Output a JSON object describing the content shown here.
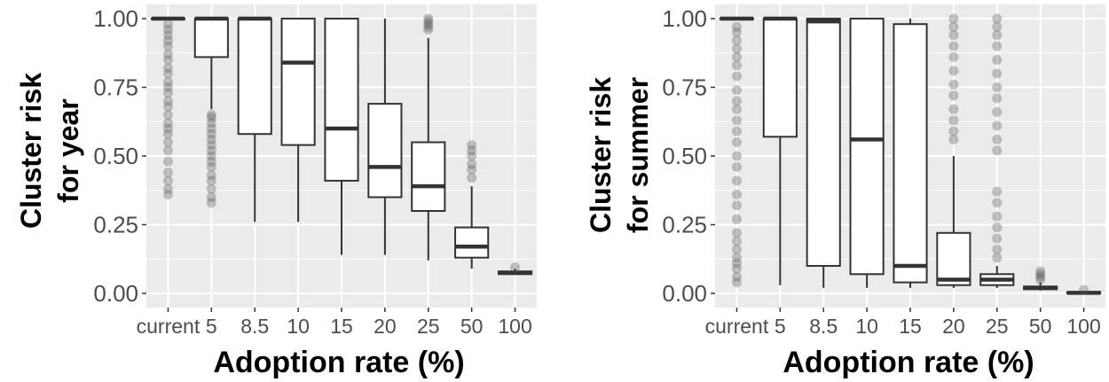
{
  "chart_data": [
    {
      "type": "boxplot",
      "title": "",
      "xlabel": "Adoption rate (%)",
      "ylabel_lines": [
        "Cluster risk",
        "for year"
      ],
      "ylim": [
        0,
        1
      ],
      "yticks": [
        0,
        0.25,
        0.5,
        0.75,
        1
      ],
      "ytick_labels": [
        "0.00",
        "0.25",
        "0.50",
        "0.75",
        "1.00"
      ],
      "categories": [
        "current",
        "5",
        "8.5",
        "10",
        "15",
        "20",
        "25",
        "50",
        "100"
      ],
      "grid": true,
      "boxes": [
        {
          "q1": 1.0,
          "median": 1.0,
          "q3": 1.0,
          "whisker_low": 1.0,
          "whisker_high": 1.0,
          "outliers": [
            0.36,
            0.38,
            0.41,
            0.44,
            0.48,
            0.52,
            0.55,
            0.58,
            0.6,
            0.62,
            0.65,
            0.68,
            0.7,
            0.73,
            0.75,
            0.77,
            0.8,
            0.82,
            0.85,
            0.87,
            0.9,
            0.92,
            0.94,
            0.96,
            0.98
          ]
        },
        {
          "q1": 0.86,
          "median": 1.0,
          "q3": 1.0,
          "whisker_low": 0.67,
          "whisker_high": 1.0,
          "outliers": [
            0.33,
            0.35,
            0.38,
            0.41,
            0.43,
            0.46,
            0.48,
            0.5,
            0.52,
            0.54,
            0.56,
            0.58,
            0.6,
            0.62,
            0.64,
            0.65
          ]
        },
        {
          "q1": 0.58,
          "median": 1.0,
          "q3": 1.0,
          "whisker_low": 0.26,
          "whisker_high": 1.0,
          "outliers": []
        },
        {
          "q1": 0.54,
          "median": 0.84,
          "q3": 1.0,
          "whisker_low": 0.26,
          "whisker_high": 1.0,
          "outliers": []
        },
        {
          "q1": 0.41,
          "median": 0.6,
          "q3": 1.0,
          "whisker_low": 0.14,
          "whisker_high": 1.0,
          "outliers": []
        },
        {
          "q1": 0.35,
          "median": 0.46,
          "q3": 0.69,
          "whisker_low": 0.14,
          "whisker_high": 1.0,
          "outliers": []
        },
        {
          "q1": 0.3,
          "median": 0.39,
          "q3": 0.55,
          "whisker_low": 0.12,
          "whisker_high": 0.93,
          "outliers": [
            0.96,
            0.97,
            0.98,
            0.99,
            1.0
          ]
        },
        {
          "q1": 0.13,
          "median": 0.17,
          "q3": 0.24,
          "whisker_low": 0.09,
          "whisker_high": 0.39,
          "outliers": [
            0.42,
            0.45,
            0.47,
            0.5,
            0.52,
            0.54
          ]
        },
        {
          "q1": 0.07,
          "median": 0.075,
          "q3": 0.08,
          "whisker_low": 0.07,
          "whisker_high": 0.09,
          "outliers": [
            0.095
          ]
        }
      ]
    },
    {
      "type": "boxplot",
      "title": "",
      "xlabel": "Adoption rate (%)",
      "ylabel_lines": [
        "Cluster risk",
        "for summer"
      ],
      "ylim": [
        0,
        1
      ],
      "yticks": [
        0,
        0.25,
        0.5,
        0.75,
        1
      ],
      "ytick_labels": [
        "0.00",
        "0.25",
        "0.50",
        "0.75",
        "1.00"
      ],
      "categories": [
        "current",
        "5",
        "8.5",
        "10",
        "15",
        "20",
        "25",
        "50",
        "100"
      ],
      "grid": true,
      "boxes": [
        {
          "q1": 1.0,
          "median": 1.0,
          "q3": 1.0,
          "whisker_low": 1.0,
          "whisker_high": 1.0,
          "outliers": [
            0.04,
            0.06,
            0.09,
            0.11,
            0.13,
            0.16,
            0.19,
            0.22,
            0.27,
            0.32,
            0.36,
            0.41,
            0.46,
            0.5,
            0.55,
            0.59,
            0.63,
            0.67,
            0.7,
            0.74,
            0.79,
            0.83,
            0.86,
            0.89,
            0.92,
            0.95,
            0.97
          ]
        },
        {
          "q1": 0.57,
          "median": 1.0,
          "q3": 1.0,
          "whisker_low": 0.03,
          "whisker_high": 1.0,
          "outliers": []
        },
        {
          "q1": 0.1,
          "median": 0.99,
          "q3": 1.0,
          "whisker_low": 0.02,
          "whisker_high": 1.0,
          "outliers": []
        },
        {
          "q1": 0.07,
          "median": 0.56,
          "q3": 1.0,
          "whisker_low": 0.02,
          "whisker_high": 1.0,
          "outliers": []
        },
        {
          "q1": 0.04,
          "median": 0.1,
          "q3": 0.98,
          "whisker_low": 0.02,
          "whisker_high": 1.0,
          "outliers": []
        },
        {
          "q1": 0.03,
          "median": 0.05,
          "q3": 0.22,
          "whisker_low": 0.02,
          "whisker_high": 0.5,
          "outliers": [
            0.56,
            0.59,
            0.63,
            0.67,
            0.72,
            0.76,
            0.81,
            0.86,
            0.9,
            0.94,
            0.97,
            1.0
          ]
        },
        {
          "q1": 0.03,
          "median": 0.05,
          "q3": 0.07,
          "whisker_low": 0.02,
          "whisker_high": 0.1,
          "outliers": [
            0.13,
            0.16,
            0.2,
            0.24,
            0.28,
            0.33,
            0.37,
            0.52,
            0.56,
            0.61,
            0.66,
            0.71,
            0.75,
            0.8,
            0.85,
            0.9,
            0.94,
            0.97,
            1.0
          ]
        },
        {
          "q1": 0.015,
          "median": 0.02,
          "q3": 0.025,
          "whisker_low": 0.01,
          "whisker_high": 0.04,
          "outliers": [
            0.05,
            0.06,
            0.07,
            0.08
          ]
        },
        {
          "q1": 0.0,
          "median": 0.002,
          "q3": 0.005,
          "whisker_low": 0.0,
          "whisker_high": 0.008,
          "outliers": [
            0.012
          ]
        }
      ]
    }
  ],
  "colors": {
    "panel_background": "#ebebeb",
    "gridline": "#ffffff",
    "box_fill": "#ffffff",
    "box_stroke": "#333333",
    "outlier": "#595959",
    "tick_text": "#4d4d4d",
    "axis_title": "#000000"
  }
}
